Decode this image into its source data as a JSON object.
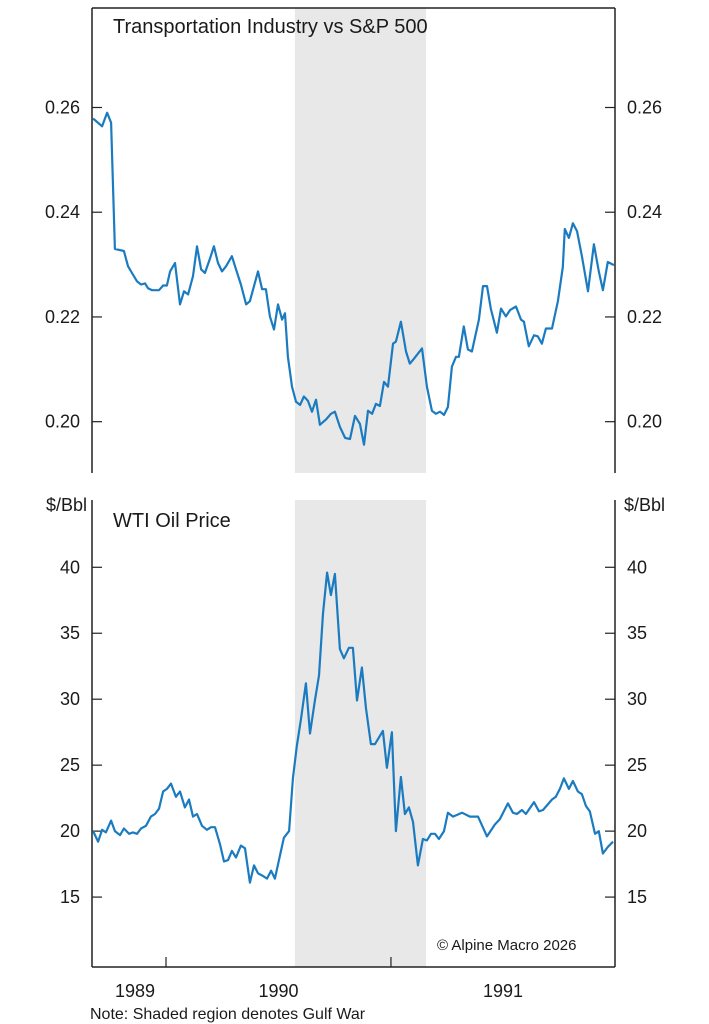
{
  "chart_data": [
    {
      "type": "line",
      "title": "Transportation Industry vs S&P 500",
      "ylabel": "",
      "xlim": [
        1989.671,
        1991.996
      ],
      "ylim": [
        0.1902,
        0.279
      ],
      "yticks": [
        "0.20",
        "0.22",
        "0.24",
        "0.26"
      ],
      "ytick_values": [
        0.2,
        0.22,
        0.24,
        0.26
      ],
      "color": "#1b7bc0",
      "series": [
        {
          "name": "Transportation Industry vs S&P 500",
          "x": [
            1989.676,
            1989.716,
            1989.738,
            1989.756,
            1989.773,
            1989.813,
            1989.831,
            1989.849,
            1989.871,
            1989.889,
            1989.907,
            1989.92,
            1989.938,
            1989.969,
            1989.987,
            1990.004,
            1990.018,
            1990.04,
            1990.062,
            1990.08,
            1990.098,
            1990.12,
            1990.138,
            1990.156,
            1990.173,
            1990.196,
            1990.213,
            1990.231,
            1990.249,
            1990.267,
            1990.293,
            1990.311,
            1990.333,
            1990.356,
            1990.373,
            1990.409,
            1990.427,
            1990.444,
            1990.462,
            1990.48,
            1990.498,
            1990.516,
            1990.529,
            1990.542,
            1990.56,
            1990.578,
            1990.596,
            1990.613,
            1990.631,
            1990.649,
            1990.667,
            1990.684,
            1990.711,
            1990.733,
            1990.751,
            1990.773,
            1990.796,
            1990.818,
            1990.84,
            1990.862,
            1990.88,
            1990.898,
            1990.916,
            1990.933,
            1990.951,
            1990.969,
            1990.987,
            1991.009,
            1991.022,
            1991.044,
            1991.067,
            1991.084,
            1991.102,
            1991.138,
            1991.16,
            1991.182,
            1991.2,
            1991.218,
            1991.236,
            1991.253,
            1991.271,
            1991.289,
            1991.302,
            1991.324,
            1991.342,
            1991.36,
            1991.391,
            1991.409,
            1991.427,
            1991.444,
            1991.471,
            1991.489,
            1991.511,
            1991.529,
            1991.556,
            1991.578,
            1991.591,
            1991.613,
            1991.636,
            1991.653,
            1991.671,
            1991.689,
            1991.716,
            1991.742,
            1991.764,
            1991.773,
            1991.791,
            1991.809,
            1991.827,
            1991.849,
            1991.876,
            1991.902,
            1991.924,
            1991.942,
            1991.964,
            1991.991
          ],
          "values": [
            0.2579,
            0.2564,
            0.259,
            0.2571,
            0.233,
            0.2326,
            0.2297,
            0.2284,
            0.2268,
            0.2262,
            0.2264,
            0.2255,
            0.2251,
            0.2251,
            0.226,
            0.226,
            0.2287,
            0.2303,
            0.2224,
            0.2249,
            0.2243,
            0.2278,
            0.2335,
            0.2291,
            0.2284,
            0.2312,
            0.2335,
            0.2303,
            0.2287,
            0.2297,
            0.2316,
            0.2291,
            0.2262,
            0.2224,
            0.223,
            0.2287,
            0.2253,
            0.2253,
            0.2201,
            0.2176,
            0.2224,
            0.2195,
            0.2207,
            0.2124,
            0.2067,
            0.2038,
            0.2032,
            0.2048,
            0.204,
            0.2019,
            0.2042,
            0.1994,
            0.2004,
            0.2015,
            0.2019,
            0.199,
            0.1969,
            0.1967,
            0.2011,
            0.1996,
            0.1956,
            0.2021,
            0.2015,
            0.2034,
            0.203,
            0.2076,
            0.2067,
            0.2149,
            0.2153,
            0.2191,
            0.2134,
            0.2111,
            0.212,
            0.214,
            0.2067,
            0.2021,
            0.2015,
            0.2019,
            0.2013,
            0.2028,
            0.2105,
            0.2124,
            0.2124,
            0.2182,
            0.2138,
            0.2134,
            0.2195,
            0.2259,
            0.2259,
            0.2216,
            0.217,
            0.2216,
            0.2201,
            0.2213,
            0.222,
            0.2195,
            0.2191,
            0.2144,
            0.2165,
            0.2163,
            0.2149,
            0.2178,
            0.2178,
            0.223,
            0.2295,
            0.2368,
            0.2351,
            0.2379,
            0.2364,
            0.2316,
            0.2249,
            0.2339,
            0.2287,
            0.2251,
            0.2305,
            0.2299
          ]
        }
      ]
    },
    {
      "type": "line",
      "title": "WTI Oil Price",
      "ylabel": "$/Bbl",
      "xlim": [
        1989.671,
        1991.996
      ],
      "ylim": [
        9.7,
        45.1
      ],
      "yticks": [
        "15",
        "20",
        "25",
        "30",
        "35",
        "40"
      ],
      "ytick_values": [
        15,
        20,
        25,
        30,
        35,
        40
      ],
      "xticks": [
        "1989",
        "1990",
        "1991"
      ],
      "xtick_marks": [
        1990,
        1991
      ],
      "color": "#1b7bc0",
      "series": [
        {
          "name": "WTI Oil Price",
          "x": [
            1989.676,
            1989.698,
            1989.716,
            1989.733,
            1989.756,
            1989.773,
            1989.796,
            1989.813,
            1989.836,
            1989.853,
            1989.871,
            1989.889,
            1989.911,
            1989.933,
            1989.951,
            1989.969,
            1989.987,
            1990.004,
            1990.022,
            1990.044,
            1990.062,
            1990.084,
            1990.102,
            1990.12,
            1990.138,
            1990.16,
            1990.182,
            1990.2,
            1990.218,
            1990.24,
            1990.258,
            1990.276,
            1990.293,
            1990.311,
            1990.333,
            1990.351,
            1990.373,
            1990.391,
            1990.409,
            1990.431,
            1990.449,
            1990.467,
            1990.484,
            1990.507,
            1990.524,
            1990.547,
            1990.564,
            1990.582,
            1990.6,
            1990.622,
            1990.64,
            1990.662,
            1990.68,
            1990.698,
            1990.716,
            1990.733,
            1990.751,
            1990.773,
            1990.791,
            1990.813,
            1990.831,
            1990.849,
            1990.871,
            1990.889,
            1990.911,
            1990.929,
            1990.964,
            1990.982,
            1991.004,
            1991.022,
            1991.044,
            1991.062,
            1991.08,
            1991.098,
            1991.12,
            1991.142,
            1991.16,
            1991.178,
            1991.196,
            1991.213,
            1991.236,
            1991.253,
            1991.276,
            1991.316,
            1991.351,
            1991.387,
            1991.427,
            1991.462,
            1991.484,
            1991.52,
            1991.542,
            1991.56,
            1991.582,
            1991.6,
            1991.636,
            1991.658,
            1991.676,
            1991.716,
            1991.733,
            1991.751,
            1991.769,
            1991.791,
            1991.809,
            1991.831,
            1991.849,
            1991.867,
            1991.884,
            1991.907,
            1991.924,
            1991.942,
            1991.964,
            1991.987
          ],
          "values": [
            20.0,
            19.2,
            20.1,
            19.9,
            20.8,
            20.0,
            19.7,
            20.2,
            19.8,
            19.9,
            19.8,
            20.2,
            20.4,
            21.1,
            21.3,
            21.7,
            23.0,
            23.2,
            23.6,
            22.6,
            23.0,
            21.8,
            22.4,
            21.1,
            21.3,
            20.4,
            20.1,
            20.3,
            20.3,
            19.0,
            17.7,
            17.8,
            18.5,
            18.0,
            18.9,
            18.7,
            16.1,
            17.4,
            16.8,
            16.6,
            16.4,
            17.0,
            16.4,
            18.2,
            19.5,
            20.0,
            24.0,
            26.5,
            28.5,
            31.2,
            27.4,
            29.9,
            31.8,
            36.5,
            39.6,
            37.9,
            39.5,
            33.8,
            33.1,
            33.9,
            33.9,
            29.9,
            32.4,
            29.3,
            26.6,
            26.6,
            27.6,
            24.8,
            27.5,
            20.0,
            24.1,
            21.3,
            21.8,
            20.7,
            17.4,
            19.4,
            19.3,
            19.8,
            19.8,
            19.4,
            20.0,
            21.4,
            21.1,
            21.4,
            21.1,
            21.1,
            19.6,
            20.5,
            20.9,
            22.1,
            21.4,
            21.3,
            21.6,
            21.3,
            22.2,
            21.5,
            21.6,
            22.4,
            22.6,
            23.2,
            24.0,
            23.2,
            23.8,
            23.0,
            22.8,
            21.9,
            21.5,
            19.8,
            20.0,
            18.3,
            18.8,
            19.2
          ]
        }
      ]
    }
  ],
  "shaded_region": {
    "label": "Gulf War",
    "start": 1990.573,
    "end": 1991.156,
    "color": "#e8e8e8"
  },
  "note": "Note: Shaded region denotes Gulf War",
  "copyright": "© Alpine Macro 2026"
}
